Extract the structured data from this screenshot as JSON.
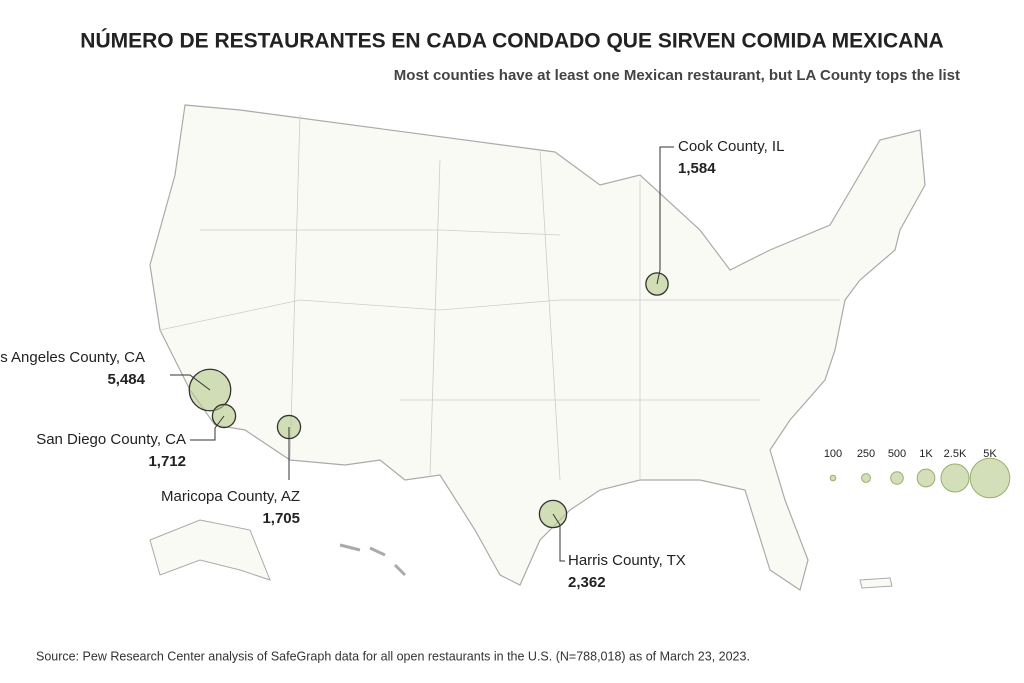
{
  "title": "NÚMERO DE RESTAURANTES EN CADA CONDADO QUE SIRVEN COMIDA MEXICANA",
  "subtitle": "Most counties have at least one Mexican restaurant, but LA County tops the list",
  "callouts": [
    {
      "name": "Los Angeles County, CA",
      "value": 5484,
      "value_label": "5,484"
    },
    {
      "name": "San Diego County, CA",
      "value": 1712,
      "value_label": "1,712"
    },
    {
      "name": "Maricopa County, AZ",
      "value": 1705,
      "value_label": "1,705"
    },
    {
      "name": "Harris County, TX",
      "value": 2362,
      "value_label": "2,362"
    },
    {
      "name": "Cook County, IL",
      "value": 1584,
      "value_label": "1,584"
    }
  ],
  "legend": {
    "sizes": [
      100,
      250,
      500,
      {
        "value": 1000,
        "label": "1K"
      },
      {
        "value": 2500,
        "label": "2.5K"
      },
      {
        "value": 5000,
        "label": "5K"
      }
    ]
  },
  "source": "Source: Pew Research Center analysis of SafeGraph data for all open restaurants in the U.S. (N=788,018) as of March 23, 2023."
}
